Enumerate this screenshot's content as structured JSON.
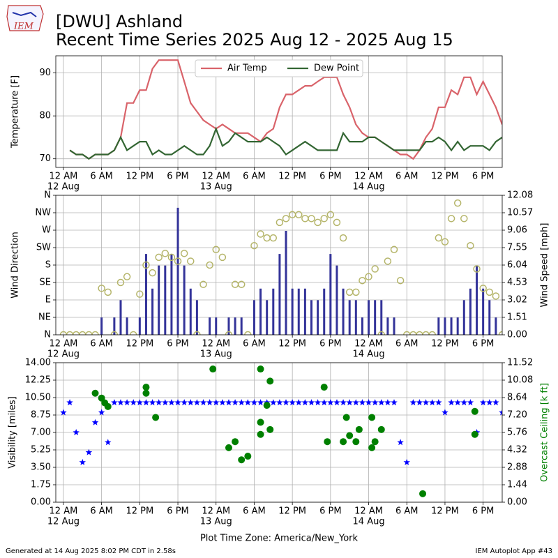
{
  "header": {
    "logo_text": "IEM",
    "title": "[DWU] Ashland",
    "subtitle": "Recent Time Series 2025 Aug 12 - 2025 Aug 15"
  },
  "footer": {
    "left": "Generated at 14 Aug 2025 8:02 PM CDT in 2.58s",
    "right": "IEM Autoplot App #43"
  },
  "chart_data": [
    {
      "type": "line",
      "ylabel": "Temperature [F]",
      "grid": true,
      "legend": "upper center",
      "xlim": [
        -1.2,
        69
      ],
      "ylim": [
        68,
        94
      ],
      "yticks": [
        70,
        80,
        90
      ],
      "xticks": [
        {
          "value": 0,
          "label": "12 AM"
        },
        {
          "value": 6,
          "label": "6 AM"
        },
        {
          "value": 12,
          "label": "12 PM"
        },
        {
          "value": 18,
          "label": "6 PM"
        },
        {
          "value": 24,
          "label": "12 AM"
        },
        {
          "value": 30,
          "label": "6 AM"
        },
        {
          "value": 36,
          "label": "12 PM"
        },
        {
          "value": 42,
          "label": "6 PM"
        },
        {
          "value": 48,
          "label": "12 AM"
        },
        {
          "value": 54,
          "label": "6 AM"
        },
        {
          "value": 60,
          "label": "12 PM"
        },
        {
          "value": 66,
          "label": "6 PM"
        }
      ],
      "xtick_days": [
        {
          "value": 0,
          "label": "12 Aug"
        },
        {
          "value": 24,
          "label": "13 Aug"
        },
        {
          "value": 48,
          "label": "14 Aug"
        }
      ],
      "x": [
        1,
        2,
        3,
        4,
        5,
        6,
        7,
        8,
        9,
        10,
        11,
        12,
        13,
        14,
        15,
        16,
        17,
        18,
        19,
        20,
        21,
        22,
        23,
        24,
        25,
        26,
        27,
        28,
        29,
        30,
        31,
        32,
        33,
        34,
        35,
        36,
        37,
        38,
        39,
        40,
        41,
        42,
        43,
        44,
        45,
        46,
        47,
        48,
        49,
        50,
        51,
        52,
        53,
        54,
        55,
        56,
        57,
        58,
        59,
        60,
        61,
        62,
        63,
        64,
        65,
        66,
        67,
        68,
        69
      ],
      "series": [
        {
          "name": "Air Temp",
          "color": "#d9636a",
          "values": [
            72,
            71,
            71,
            70,
            71,
            71,
            71,
            72,
            75,
            83,
            83,
            86,
            86,
            91,
            93,
            93,
            93,
            93,
            88,
            83,
            81,
            79,
            78,
            77,
            78,
            77,
            76,
            76,
            76,
            75,
            74,
            76,
            77,
            82,
            85,
            85,
            86,
            87,
            87,
            88,
            89,
            89,
            89,
            85,
            82,
            78,
            76,
            75,
            75,
            74,
            73,
            72,
            71,
            71,
            70,
            72,
            75,
            77,
            82,
            82,
            86,
            85,
            89,
            89,
            85,
            88,
            85,
            82,
            78
          ]
        },
        {
          "name": "Dew Point",
          "color": "#336633",
          "values": [
            72,
            71,
            71,
            70,
            71,
            71,
            71,
            72,
            75,
            72,
            73,
            74,
            74,
            71,
            72,
            71,
            71,
            72,
            73,
            72,
            71,
            71,
            73,
            77,
            73,
            74,
            76,
            75,
            74,
            74,
            74,
            75,
            74,
            73,
            71,
            72,
            73,
            74,
            73,
            72,
            72,
            72,
            72,
            76,
            74,
            74,
            74,
            75,
            75,
            74,
            73,
            72,
            72,
            72,
            72,
            72,
            74,
            74,
            75,
            74,
            72,
            74,
            72,
            73,
            73,
            73,
            72,
            74,
            75
          ]
        }
      ]
    },
    {
      "type": "bar",
      "ylabel": "Wind Direction",
      "y2label": "Wind Speed [mph]",
      "grid": true,
      "xlim": [
        -1.2,
        69
      ],
      "ylim": [
        0,
        360
      ],
      "y2lim": [
        0,
        12.08
      ],
      "yticks": [
        {
          "value": 0,
          "label": "N"
        },
        {
          "value": 45,
          "label": "NE"
        },
        {
          "value": 90,
          "label": "E"
        },
        {
          "value": 135,
          "label": "SE"
        },
        {
          "value": 180,
          "label": "S"
        },
        {
          "value": 225,
          "label": "SW"
        },
        {
          "value": 270,
          "label": "W"
        },
        {
          "value": 315,
          "label": "NW"
        },
        {
          "value": 360,
          "label": "N"
        }
      ],
      "y2ticks": [
        {
          "value": 0,
          "label": "0.00"
        },
        1.51,
        3.02,
        4.53,
        6.04,
        7.55,
        9.06,
        10.57,
        12.08
      ],
      "xticks": [
        {
          "value": 0,
          "label": "12 AM"
        },
        {
          "value": 6,
          "label": "6 AM"
        },
        {
          "value": 12,
          "label": "12 PM"
        },
        {
          "value": 18,
          "label": "6 PM"
        },
        {
          "value": 24,
          "label": "12 AM"
        },
        {
          "value": 30,
          "label": "6 AM"
        },
        {
          "value": 36,
          "label": "12 PM"
        },
        {
          "value": 42,
          "label": "6 PM"
        },
        {
          "value": 48,
          "label": "12 AM"
        },
        {
          "value": 54,
          "label": "6 AM"
        },
        {
          "value": 60,
          "label": "12 PM"
        },
        {
          "value": 66,
          "label": "6 PM"
        }
      ],
      "xtick_days": [
        {
          "value": 0,
          "label": "12 Aug"
        },
        {
          "value": 24,
          "label": "13 Aug"
        },
        {
          "value": 48,
          "label": "14 Aug"
        }
      ],
      "x": [
        0,
        1,
        2,
        3,
        4,
        5,
        6,
        7,
        8,
        9,
        10,
        11,
        12,
        13,
        14,
        15,
        16,
        17,
        18,
        19,
        20,
        21,
        22,
        23,
        24,
        25,
        26,
        27,
        28,
        29,
        30,
        31,
        32,
        33,
        34,
        35,
        36,
        37,
        38,
        39,
        40,
        41,
        42,
        43,
        44,
        45,
        46,
        47,
        48,
        49,
        50,
        51,
        52,
        53,
        54,
        55,
        56,
        57,
        58,
        59,
        60,
        61,
        62,
        63,
        64,
        65,
        66,
        67,
        68,
        69
      ],
      "series": [
        {
          "type": "bar",
          "axis": "y2",
          "color": "#333399",
          "values": [
            0,
            0,
            0,
            0,
            0,
            0,
            1.5,
            0,
            1.5,
            3,
            1.5,
            0,
            1.5,
            7,
            4,
            6,
            6,
            7,
            11,
            6,
            4,
            3,
            0,
            1.5,
            1.5,
            0,
            1.5,
            1.5,
            1.5,
            0,
            3,
            4,
            3,
            4,
            7,
            9,
            4,
            4,
            4,
            3,
            3,
            4,
            7,
            6,
            4,
            3,
            3,
            1.5,
            3,
            3,
            3,
            1.5,
            1.5,
            0,
            0,
            0,
            0,
            0,
            0,
            1.5,
            1.5,
            1.5,
            1.5,
            3,
            4,
            6,
            4,
            3,
            1.5,
            0
          ]
        },
        {
          "type": "scatter",
          "marker": "ring",
          "color": "#b5b56a",
          "values": [
            0,
            0,
            0,
            0,
            0,
            0,
            120,
            110,
            0,
            135,
            150,
            0,
            105,
            180,
            160,
            200,
            210,
            200,
            190,
            210,
            190,
            0,
            130,
            180,
            220,
            200,
            0,
            130,
            130,
            0,
            230,
            260,
            250,
            250,
            290,
            300,
            310,
            310,
            300,
            300,
            290,
            300,
            310,
            290,
            250,
            110,
            110,
            140,
            150,
            170,
            0,
            190,
            220,
            140,
            0,
            0,
            0,
            0,
            0,
            250,
            240,
            300,
            340,
            300,
            230,
            170,
            120,
            110,
            100,
            0
          ]
        }
      ]
    },
    {
      "type": "scatter",
      "ylabel": "Visibility [miles]",
      "y2label": "Overcast Ceiling [k ft]",
      "y2label_color": "green",
      "xlabel": "Plot Time Zone: America/New_York",
      "grid": true,
      "xlim": [
        -1.2,
        69
      ],
      "ylim": [
        0,
        14
      ],
      "y2lim": [
        0,
        11.52
      ],
      "yticks": [
        {
          "value": 0,
          "label": "0.00"
        },
        1.75,
        {
          "value": 3.5,
          "label": "3.50"
        },
        5.25,
        {
          "value": 7,
          "label": "7.00"
        },
        8.75,
        {
          "value": 10.5,
          "label": "10.50"
        },
        12.25,
        {
          "value": 14,
          "label": "14.00"
        }
      ],
      "y2ticks": [
        {
          "value": 0,
          "label": "0.00"
        },
        1.44,
        2.88,
        4.32,
        5.76,
        {
          "value": 7.2,
          "label": "7.20"
        },
        8.64,
        10.08,
        11.52
      ],
      "xticks": [
        {
          "value": 0,
          "label": "12 AM"
        },
        {
          "value": 6,
          "label": "6 AM"
        },
        {
          "value": 12,
          "label": "12 PM"
        },
        {
          "value": 18,
          "label": "6 PM"
        },
        {
          "value": 24,
          "label": "12 AM"
        },
        {
          "value": 30,
          "label": "6 AM"
        },
        {
          "value": 36,
          "label": "12 PM"
        },
        {
          "value": 42,
          "label": "6 PM"
        },
        {
          "value": 48,
          "label": "12 AM"
        },
        {
          "value": 54,
          "label": "6 AM"
        },
        {
          "value": 60,
          "label": "12 PM"
        },
        {
          "value": 66,
          "label": "6 PM"
        }
      ],
      "xtick_days": [
        {
          "value": 0,
          "label": "12 Aug"
        },
        {
          "value": 24,
          "label": "13 Aug"
        },
        {
          "value": 48,
          "label": "14 Aug"
        }
      ],
      "series": [
        {
          "type": "scatter",
          "marker": "star",
          "color": "blue",
          "x": [
            0,
            1,
            2,
            3,
            4,
            5,
            6,
            7,
            8,
            9,
            10,
            11,
            12,
            13,
            14,
            15,
            16,
            17,
            18,
            19,
            20,
            21,
            22,
            23,
            24,
            25,
            26,
            27,
            28,
            29,
            30,
            31,
            32,
            33,
            34,
            35,
            36,
            37,
            38,
            39,
            40,
            41,
            42,
            43,
            44,
            45,
            46,
            47,
            48,
            49,
            50,
            51,
            52,
            53,
            54,
            55,
            56,
            57,
            58,
            59,
            60,
            61,
            62,
            63,
            64,
            65,
            66,
            67,
            68,
            69
          ],
          "values": [
            9,
            10,
            7,
            4,
            5,
            8,
            9,
            6,
            10,
            10,
            10,
            10,
            10,
            10,
            10,
            10,
            10,
            10,
            10,
            10,
            10,
            10,
            10,
            10,
            10,
            10,
            10,
            10,
            10,
            10,
            10,
            10,
            10,
            10,
            10,
            10,
            10,
            10,
            10,
            10,
            10,
            10,
            10,
            10,
            10,
            10,
            10,
            10,
            10,
            10,
            10,
            10,
            10,
            6,
            4,
            10,
            10,
            10,
            10,
            10,
            9,
            10,
            10,
            10,
            10,
            7,
            10,
            10,
            10,
            9
          ]
        },
        {
          "type": "scatter",
          "marker": "dot",
          "axis": "y2",
          "color": "green",
          "x": [
            5,
            6,
            6.5,
            7,
            13,
            13,
            14.5,
            23.5,
            26,
            27,
            28,
            29,
            31,
            31,
            31,
            32,
            32.5,
            32.5,
            41,
            41.5,
            44,
            44.5,
            45,
            46,
            46.5,
            48.5,
            48.5,
            49,
            50,
            56.5,
            64.7,
            64.7
          ],
          "values": [
            9.0,
            8.6,
            8.2,
            7.9,
            9.5,
            9.0,
            7.0,
            11.0,
            4.5,
            5.0,
            3.5,
            3.8,
            11.0,
            6.6,
            5.6,
            8.0,
            10.0,
            6.0,
            9.5,
            5.0,
            5.0,
            7.0,
            5.5,
            5.0,
            6.0,
            4.5,
            7.0,
            5.0,
            6.0,
            0.7,
            7.5,
            5.6
          ]
        }
      ]
    }
  ]
}
